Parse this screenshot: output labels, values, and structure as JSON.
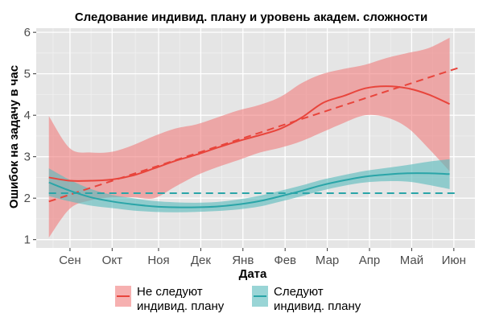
{
  "chart_data": {
    "type": "line",
    "title": "Следование индивид. плану и уровень академ. сложности",
    "xlabel": "Дата",
    "ylabel": "Ошибок на задачу в час",
    "ylim": [
      0.8,
      6.1
    ],
    "yticks": [
      1,
      2,
      3,
      4,
      5,
      6
    ],
    "x_ticks": [
      "Сен",
      "Окт",
      "Ноя",
      "Дек",
      "Янв",
      "Фев",
      "Мар",
      "Апр",
      "Май",
      "Июн"
    ],
    "x_tick_positions": [
      1,
      2,
      3.1,
      4.1,
      5.1,
      6.1,
      7.1,
      8.1,
      9.1,
      10.1
    ],
    "xlim": [
      0.2,
      10.6
    ],
    "grid": true,
    "legend_position": "bottom",
    "series": [
      {
        "name": "Не следуют\nиндивид. плану",
        "color": "#e8453c",
        "band_color": "#f08080",
        "smooth": {
          "x": [
            0.5,
            1.0,
            1.5,
            2.0,
            2.5,
            3.0,
            3.5,
            4.0,
            4.5,
            5.0,
            5.5,
            6.0,
            6.5,
            7.0,
            7.5,
            8.0,
            8.5,
            9.0,
            9.5,
            10.0
          ],
          "y": [
            2.5,
            2.42,
            2.42,
            2.45,
            2.55,
            2.72,
            2.9,
            3.05,
            3.22,
            3.38,
            3.52,
            3.68,
            3.95,
            4.3,
            4.47,
            4.65,
            4.7,
            4.65,
            4.5,
            4.27
          ],
          "lower": [
            1.05,
            1.75,
            1.95,
            2.02,
            2.02,
            2.0,
            2.28,
            2.55,
            2.75,
            2.92,
            3.1,
            3.22,
            3.38,
            3.6,
            3.82,
            4.0,
            3.95,
            3.7,
            3.2,
            2.65
          ],
          "upper": [
            3.98,
            3.2,
            3.1,
            3.12,
            3.28,
            3.5,
            3.68,
            3.78,
            3.95,
            4.12,
            4.25,
            4.45,
            4.78,
            5.0,
            5.12,
            5.22,
            5.38,
            5.5,
            5.62,
            5.87
          ]
        },
        "trend": {
          "x": [
            0.5,
            10.2
          ],
          "y": [
            1.92,
            5.14
          ]
        }
      },
      {
        "name": "Следуют\nиндивид. плану",
        "color": "#2aa5a8",
        "band_color": "#5bbcbd",
        "smooth": {
          "x": [
            0.5,
            1.0,
            1.5,
            2.0,
            2.5,
            3.0,
            3.5,
            4.0,
            4.5,
            5.0,
            5.5,
            6.0,
            6.5,
            7.0,
            7.5,
            8.0,
            8.5,
            9.0,
            9.5,
            10.0
          ],
          "y": [
            2.38,
            2.18,
            2.02,
            1.92,
            1.85,
            1.8,
            1.78,
            1.78,
            1.8,
            1.85,
            1.93,
            2.05,
            2.18,
            2.32,
            2.43,
            2.52,
            2.57,
            2.6,
            2.6,
            2.58
          ],
          "lower": [
            2.05,
            1.92,
            1.82,
            1.76,
            1.7,
            1.67,
            1.66,
            1.67,
            1.69,
            1.73,
            1.8,
            1.92,
            2.05,
            2.19,
            2.3,
            2.38,
            2.41,
            2.4,
            2.32,
            2.22
          ],
          "upper": [
            2.72,
            2.44,
            2.22,
            2.08,
            2.0,
            1.93,
            1.9,
            1.89,
            1.91,
            1.97,
            2.06,
            2.18,
            2.31,
            2.45,
            2.56,
            2.66,
            2.73,
            2.8,
            2.88,
            2.94
          ]
        },
        "trend": {
          "x": [
            0.5,
            10.2
          ],
          "y": [
            2.12,
            2.12
          ]
        }
      }
    ]
  }
}
